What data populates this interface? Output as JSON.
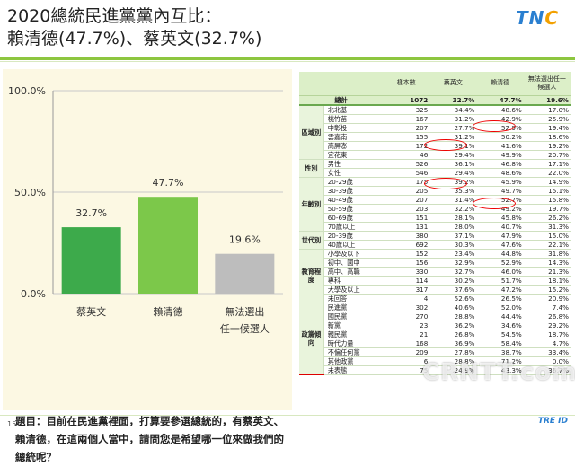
{
  "title_line1": "2020總統民進黨黨內互比：",
  "title_line2": "賴清德(47.7%)、蔡英文(32.7%)",
  "logo": {
    "main": "TN",
    "accent": "C"
  },
  "question": "題目：目前在民進黨裡面，打算要參選總統的，有蔡英文、賴清德，在這兩個人當中，請問您是希望哪一位來做我們的總統呢？",
  "page_number": "15",
  "bottom_logo": "TRE ID",
  "watermark": "CRNTT.com",
  "colors": {
    "bar_tsai": "#3daa4b",
    "bar_lai": "#7cc84a",
    "bar_none": "#bdbdbd",
    "accent": "#8dc63f",
    "highlight": "#dd0000"
  },
  "chart_data": {
    "type": "bar",
    "categories": [
      "蔡英文",
      "賴清德",
      "無法選出\n任一候選人"
    ],
    "values": [
      32.7,
      47.7,
      19.6
    ],
    "value_labels": [
      "32.7%",
      "47.7%",
      "19.6%"
    ],
    "yticks": [
      "0.0%",
      "50.0%",
      "100.0%"
    ],
    "ylim": [
      0,
      100
    ],
    "grid": true
  },
  "table": {
    "headers": [
      "",
      "",
      "樣本數",
      "蔡英文",
      "賴清德",
      "無法選出任一候選人"
    ],
    "total": {
      "label": "總計",
      "n": "1072",
      "a": "32.7%",
      "b": "47.7%",
      "c": "19.6%"
    },
    "groups": [
      {
        "name": "區域別",
        "rows": [
          [
            "北北基",
            "325",
            "34.4%",
            "48.6%",
            "17.0%"
          ],
          [
            "桃竹苗",
            "167",
            "31.2%",
            "42.9%",
            "25.9%"
          ],
          [
            "中彰投",
            "207",
            "27.7%",
            "52.9%",
            "19.4%"
          ],
          [
            "雲嘉南",
            "155",
            "31.2%",
            "50.2%",
            "18.6%"
          ],
          [
            "高屏澎",
            "172",
            "39.1%",
            "41.6%",
            "19.2%"
          ],
          [
            "宜花東",
            "46",
            "29.4%",
            "49.9%",
            "20.7%"
          ]
        ]
      },
      {
        "name": "性別",
        "rows": [
          [
            "男性",
            "526",
            "36.1%",
            "46.8%",
            "17.1%"
          ],
          [
            "女性",
            "546",
            "29.4%",
            "48.6%",
            "22.0%"
          ]
        ]
      },
      {
        "name": "年齡別",
        "rows": [
          [
            "20-29歲",
            "175",
            "39.2%",
            "45.9%",
            "14.9%"
          ],
          [
            "30-39歲",
            "205",
            "35.3%",
            "49.7%",
            "15.1%"
          ],
          [
            "40-49歲",
            "207",
            "31.4%",
            "52.7%",
            "15.8%"
          ],
          [
            "50-59歲",
            "203",
            "32.2%",
            "49.2%",
            "19.7%"
          ],
          [
            "60-69歲",
            "151",
            "28.1%",
            "45.8%",
            "26.2%"
          ],
          [
            "70歲以上",
            "131",
            "28.0%",
            "40.7%",
            "31.3%"
          ]
        ]
      },
      {
        "name": "世代別",
        "rows": [
          [
            "20-39歲",
            "380",
            "37.1%",
            "47.9%",
            "15.0%"
          ],
          [
            "40歲以上",
            "692",
            "30.3%",
            "47.6%",
            "22.1%"
          ]
        ]
      },
      {
        "name": "教育程度",
        "rows": [
          [
            "小學及以下",
            "152",
            "23.4%",
            "44.8%",
            "31.8%"
          ],
          [
            "初中、國中",
            "156",
            "32.9%",
            "52.9%",
            "14.3%"
          ],
          [
            "高中、高職",
            "330",
            "32.7%",
            "46.0%",
            "21.3%"
          ],
          [
            "專科",
            "114",
            "30.2%",
            "51.7%",
            "18.1%"
          ],
          [
            "大學及以上",
            "317",
            "37.6%",
            "47.2%",
            "15.2%"
          ],
          [
            "未回答",
            "4",
            "52.6%",
            "26.5%",
            "20.9%"
          ]
        ]
      },
      {
        "name": "政黨傾向",
        "rows": [
          [
            "民進黨",
            "302",
            "40.6%",
            "52.0%",
            "7.4%"
          ],
          [
            "國民黨",
            "270",
            "28.8%",
            "44.4%",
            "26.8%"
          ],
          [
            "新黨",
            "23",
            "36.2%",
            "34.6%",
            "29.2%"
          ],
          [
            "親民黨",
            "21",
            "26.8%",
            "54.5%",
            "18.7%"
          ],
          [
            "時代力量",
            "168",
            "36.9%",
            "58.4%",
            "4.7%"
          ],
          [
            "不偏任何黨",
            "209",
            "27.8%",
            "38.7%",
            "33.4%"
          ],
          [
            "其他政黨",
            "6",
            "28.8%",
            "71.2%",
            "0.0%"
          ],
          [
            "未表態",
            "75",
            "24.9%",
            "43.3%",
            "36.7%"
          ]
        ]
      }
    ]
  }
}
